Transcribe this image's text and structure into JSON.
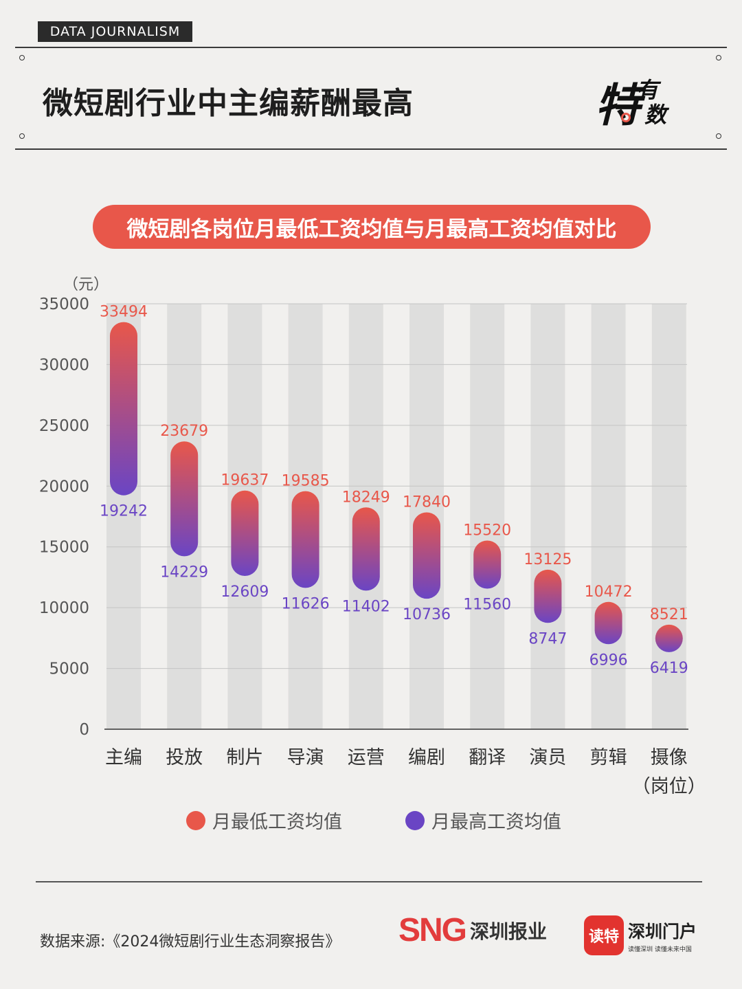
{
  "header": {
    "tag": "DATA JOURNALISM",
    "title": "微短剧行业中主编薪酬最高",
    "logo": {
      "big": "特",
      "small1": "有",
      "small2": "数"
    }
  },
  "subtitle": "微短剧各岗位月最低工资均值与月最高工资均值对比",
  "colors": {
    "low": "#e8574a",
    "high": "#6a45c4",
    "track": "#dededd",
    "accent": "#e8574a"
  },
  "chart_data": {
    "type": "bar",
    "unit_label": "（元）",
    "categories": [
      "主编",
      "投放",
      "制片",
      "导演",
      "运营",
      "编剧",
      "翻译",
      "演员",
      "剪辑",
      "摄像"
    ],
    "x_axis_label": "（岗位）",
    "series": [
      {
        "name": "月最低工资均值",
        "values": [
          33494,
          23679,
          19637,
          19585,
          18249,
          17840,
          15520,
          13125,
          10472,
          8521
        ]
      },
      {
        "name": "月最高工资均值",
        "values": [
          19242,
          14229,
          12609,
          11626,
          11402,
          10736,
          11560,
          8747,
          6996,
          6419
        ]
      }
    ],
    "ylim": [
      0,
      35000
    ],
    "yticks": [
      "0",
      "5000",
      "10000",
      "15000",
      "20000",
      "25000",
      "30000",
      "35000"
    ],
    "grid": true,
    "legend_position": "bottom"
  },
  "legend": {
    "low": "月最低工资均值",
    "high": "月最高工资均值"
  },
  "footer": {
    "source": "数据来源:《2024微短剧行业生态洞察报告》",
    "sng_mark": "SNG",
    "sng_text": "深圳报业",
    "dute_box": "读特",
    "dute_name": "深圳门户",
    "dute_slogan": "读懂深圳 读懂未来中国"
  }
}
